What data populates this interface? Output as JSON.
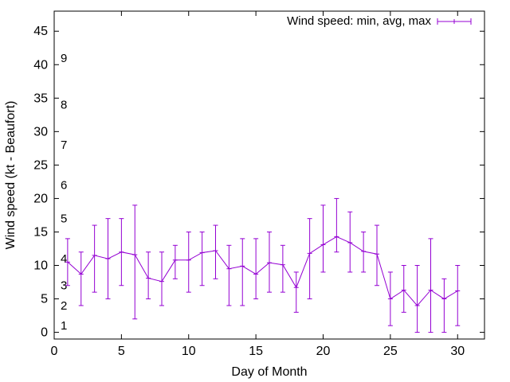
{
  "chart_data": {
    "type": "line",
    "xlabel": "Day of Month",
    "ylabel": "Wind speed (kt - Beaufort)",
    "xlim": [
      0,
      32
    ],
    "ylim": [
      -1,
      48
    ],
    "x_ticks": [
      0,
      5,
      10,
      15,
      20,
      25,
      30
    ],
    "y_ticks": [
      0,
      5,
      10,
      15,
      20,
      25,
      30,
      35,
      40,
      45
    ],
    "grid": false,
    "legend_position": "top-right",
    "series": [
      {
        "name": "Wind speed: min, avg, max",
        "color": "#9400d3",
        "style": "line-with-errorbars",
        "x": [
          1,
          2,
          3,
          4,
          5,
          6,
          7,
          8,
          9,
          10,
          11,
          12,
          13,
          14,
          15,
          16,
          17,
          18,
          19,
          20,
          21,
          22,
          23,
          24,
          25,
          26,
          27,
          28,
          29,
          30
        ],
        "min": [
          7,
          4,
          6,
          5,
          7,
          2,
          5,
          4,
          8,
          6,
          7,
          8,
          4,
          4,
          5,
          6,
          6,
          3,
          5,
          9,
          12,
          9,
          9,
          7,
          1,
          3,
          0,
          0,
          0,
          1
        ],
        "avg": [
          10.5,
          8.7,
          11.5,
          11.0,
          12.0,
          11.6,
          8.1,
          7.6,
          10.8,
          10.8,
          11.9,
          12.2,
          9.5,
          9.9,
          8.7,
          10.4,
          10.1,
          6.7,
          11.8,
          13.1,
          14.3,
          13.4,
          12.1,
          11.7,
          5.0,
          6.3,
          4.0,
          6.3,
          5.0,
          6.2
        ],
        "max": [
          14,
          12,
          16,
          17,
          17,
          19,
          12,
          12,
          13,
          15,
          15,
          16,
          13,
          14,
          14,
          15,
          13,
          9,
          17,
          19,
          20,
          18,
          15,
          16,
          9,
          10,
          10,
          14,
          8,
          10
        ]
      }
    ],
    "beaufort_labels": [
      {
        "label": "1",
        "y": 1
      },
      {
        "label": "2",
        "y": 4
      },
      {
        "label": "3",
        "y": 7
      },
      {
        "label": "4",
        "y": 11
      },
      {
        "label": "5",
        "y": 17
      },
      {
        "label": "6",
        "y": 22
      },
      {
        "label": "7",
        "y": 28
      },
      {
        "label": "8",
        "y": 34
      },
      {
        "label": "9",
        "y": 41
      }
    ]
  }
}
